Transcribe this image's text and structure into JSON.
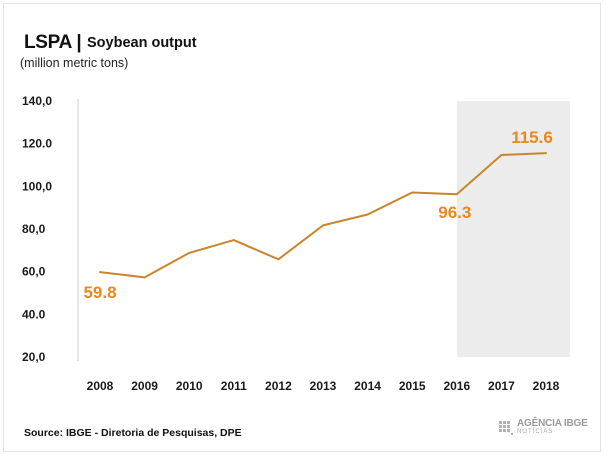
{
  "header": {
    "brand": "LSPA |",
    "title": "Soybean output",
    "unit": "(million metric tons)"
  },
  "footer": {
    "source": "Source: IBGE - Diretoria de Pesquisas, DPE",
    "logo_main": "AGÊNCIA IBGE",
    "logo_sub": "NOTÍCIAS"
  },
  "colors": {
    "line": "#c8862a",
    "data_label": "#e8891d",
    "shade": "#ececec"
  },
  "chart_data": {
    "type": "line",
    "categories": [
      "2008",
      "2009",
      "2010",
      "2011",
      "2012",
      "2013",
      "2014",
      "2015",
      "2016",
      "2017",
      "2018"
    ],
    "values": [
      59.8,
      57.3,
      68.8,
      74.8,
      65.8,
      81.7,
      86.8,
      97.1,
      96.3,
      114.7,
      115.6
    ],
    "y_ticks": [
      "140,0",
      "120.0",
      "100,0",
      "80,0",
      "60,0",
      "40.0",
      "20,0"
    ],
    "y_tick_values": [
      140,
      120,
      100,
      80,
      60,
      40,
      20
    ],
    "ylim": [
      20,
      140
    ],
    "highlight_range": [
      "2016",
      "2018"
    ],
    "data_labels": [
      {
        "index": 0,
        "text": "59.8"
      },
      {
        "index": 8,
        "text": "96.3"
      },
      {
        "index": 10,
        "text": "115.6"
      }
    ],
    "grid": false,
    "legend": "none"
  }
}
